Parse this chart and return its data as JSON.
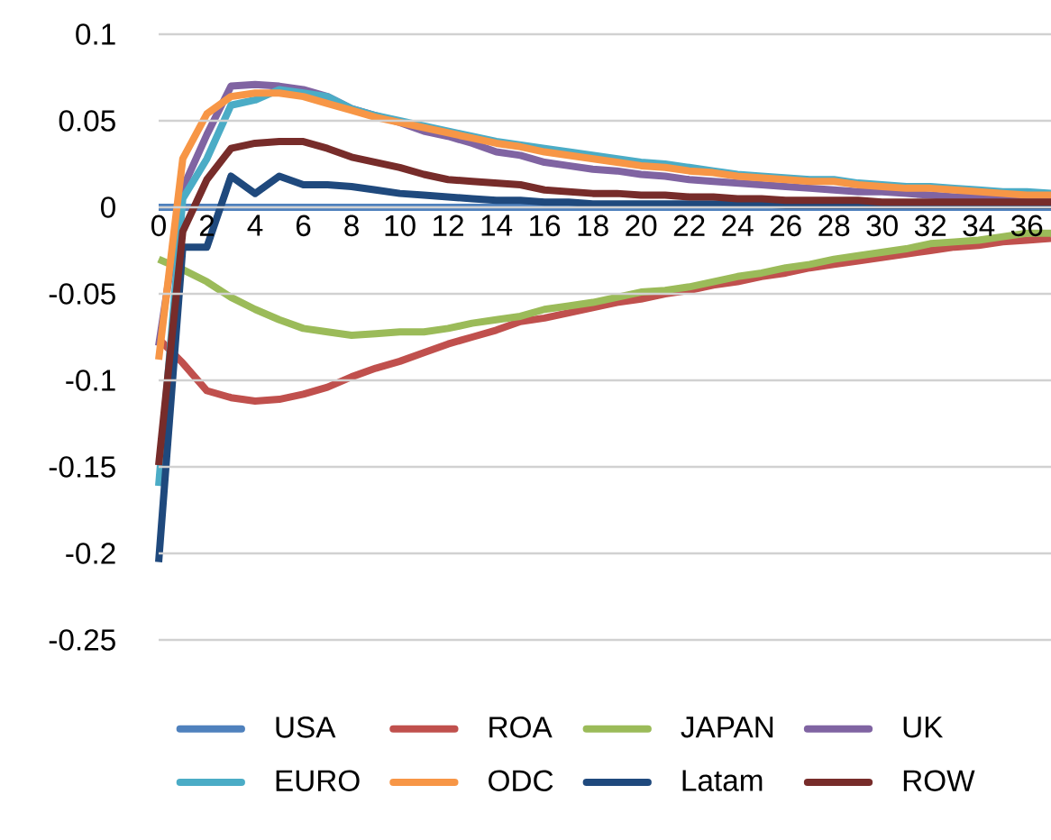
{
  "chart_data": {
    "type": "line",
    "x": [
      0,
      1,
      2,
      3,
      4,
      5,
      6,
      7,
      8,
      9,
      10,
      11,
      12,
      13,
      14,
      15,
      16,
      17,
      18,
      19,
      20,
      21,
      22,
      23,
      24,
      25,
      26,
      27,
      28,
      29,
      30,
      31,
      32,
      33,
      34,
      35,
      36,
      37
    ],
    "xlim": [
      0,
      37
    ],
    "xticks": [
      0,
      2,
      4,
      6,
      8,
      10,
      12,
      14,
      16,
      18,
      20,
      22,
      24,
      26,
      28,
      30,
      32,
      34,
      36
    ],
    "ylim": [
      -0.25,
      0.1
    ],
    "yticks": [
      -0.25,
      -0.2,
      -0.15,
      -0.1,
      -0.05,
      0,
      0.05,
      0.1
    ],
    "grid": "y",
    "legend": "bottom",
    "marker": "none",
    "line_style": "solid",
    "series": [
      {
        "name": "USA",
        "color": "#4f81bd",
        "values": [
          0,
          0,
          0,
          0,
          0,
          0,
          0,
          0,
          0,
          0,
          0,
          0,
          0,
          0,
          0,
          0,
          0,
          0,
          0,
          0,
          0,
          0,
          0,
          0,
          0,
          0,
          0,
          0,
          0,
          0,
          0,
          0,
          0,
          0,
          0,
          0,
          0,
          0
        ]
      },
      {
        "name": "ROA",
        "color": "#c0504d",
        "values": [
          -0.076,
          -0.09,
          -0.106,
          -0.11,
          -0.112,
          -0.111,
          -0.108,
          -0.104,
          -0.098,
          -0.093,
          -0.089,
          -0.084,
          -0.079,
          -0.075,
          -0.071,
          -0.066,
          -0.064,
          -0.061,
          -0.058,
          -0.055,
          -0.053,
          -0.05,
          -0.048,
          -0.045,
          -0.043,
          -0.04,
          -0.038,
          -0.035,
          -0.033,
          -0.031,
          -0.029,
          -0.027,
          -0.025,
          -0.023,
          -0.022,
          -0.02,
          -0.019,
          -0.018
        ]
      },
      {
        "name": "JAPAN",
        "color": "#9bbb59",
        "values": [
          -0.03,
          -0.036,
          -0.043,
          -0.052,
          -0.059,
          -0.065,
          -0.07,
          -0.072,
          -0.074,
          -0.073,
          -0.072,
          -0.072,
          -0.07,
          -0.067,
          -0.065,
          -0.063,
          -0.059,
          -0.057,
          -0.055,
          -0.052,
          -0.049,
          -0.048,
          -0.046,
          -0.043,
          -0.04,
          -0.038,
          -0.035,
          -0.033,
          -0.03,
          -0.028,
          -0.026,
          -0.024,
          -0.021,
          -0.02,
          -0.019,
          -0.017,
          -0.015,
          -0.015
        ]
      },
      {
        "name": "UK",
        "color": "#8064a2",
        "values": [
          -0.08,
          0.011,
          0.042,
          0.07,
          0.071,
          0.07,
          0.068,
          0.064,
          0.057,
          0.053,
          0.049,
          0.044,
          0.041,
          0.037,
          0.032,
          0.03,
          0.026,
          0.024,
          0.022,
          0.021,
          0.019,
          0.018,
          0.016,
          0.015,
          0.014,
          0.013,
          0.012,
          0.011,
          0.01,
          0.009,
          0.009,
          0.008,
          0.007,
          0.006,
          0.006,
          0.005,
          0.005,
          0.004
        ]
      },
      {
        "name": "EURO",
        "color": "#4bacc6",
        "values": [
          -0.161,
          0.005,
          0.028,
          0.059,
          0.062,
          0.068,
          0.066,
          0.064,
          0.057,
          0.053,
          0.05,
          0.047,
          0.044,
          0.041,
          0.038,
          0.036,
          0.034,
          0.032,
          0.03,
          0.028,
          0.026,
          0.025,
          0.023,
          0.021,
          0.019,
          0.018,
          0.017,
          0.016,
          0.016,
          0.014,
          0.013,
          0.012,
          0.012,
          0.011,
          0.01,
          0.009,
          0.009,
          0.008
        ]
      },
      {
        "name": "ODC",
        "color": "#f79646",
        "values": [
          -0.088,
          0.028,
          0.054,
          0.064,
          0.066,
          0.066,
          0.064,
          0.06,
          0.056,
          0.052,
          0.049,
          0.046,
          0.043,
          0.04,
          0.037,
          0.035,
          0.032,
          0.03,
          0.028,
          0.026,
          0.024,
          0.023,
          0.021,
          0.02,
          0.018,
          0.017,
          0.016,
          0.015,
          0.015,
          0.013,
          0.012,
          0.011,
          0.011,
          0.01,
          0.009,
          0.008,
          0.007,
          0.007
        ]
      },
      {
        "name": "Latam",
        "color": "#1f497d",
        "values": [
          -0.205,
          -0.023,
          -0.023,
          0.018,
          0.008,
          0.018,
          0.013,
          0.013,
          0.012,
          0.01,
          0.008,
          0.007,
          0.006,
          0.005,
          0.004,
          0.004,
          0.003,
          0.003,
          0.002,
          0.002,
          0.002,
          0.002,
          0.002,
          0.002,
          0.002,
          0.002,
          0.001,
          0.001,
          0.001,
          0.001,
          0.001,
          0.001,
          0.001,
          0.001,
          0.001,
          0.001,
          0.001,
          0.001
        ]
      },
      {
        "name": "ROW",
        "color": "#772c2a",
        "values": [
          -0.149,
          -0.014,
          0.016,
          0.034,
          0.037,
          0.038,
          0.038,
          0.034,
          0.029,
          0.026,
          0.023,
          0.019,
          0.016,
          0.015,
          0.014,
          0.013,
          0.01,
          0.009,
          0.008,
          0.008,
          0.007,
          0.007,
          0.006,
          0.006,
          0.005,
          0.005,
          0.004,
          0.004,
          0.004,
          0.004,
          0.003,
          0.003,
          0.003,
          0.003,
          0.003,
          0.003,
          0.003,
          0.003
        ]
      }
    ]
  }
}
